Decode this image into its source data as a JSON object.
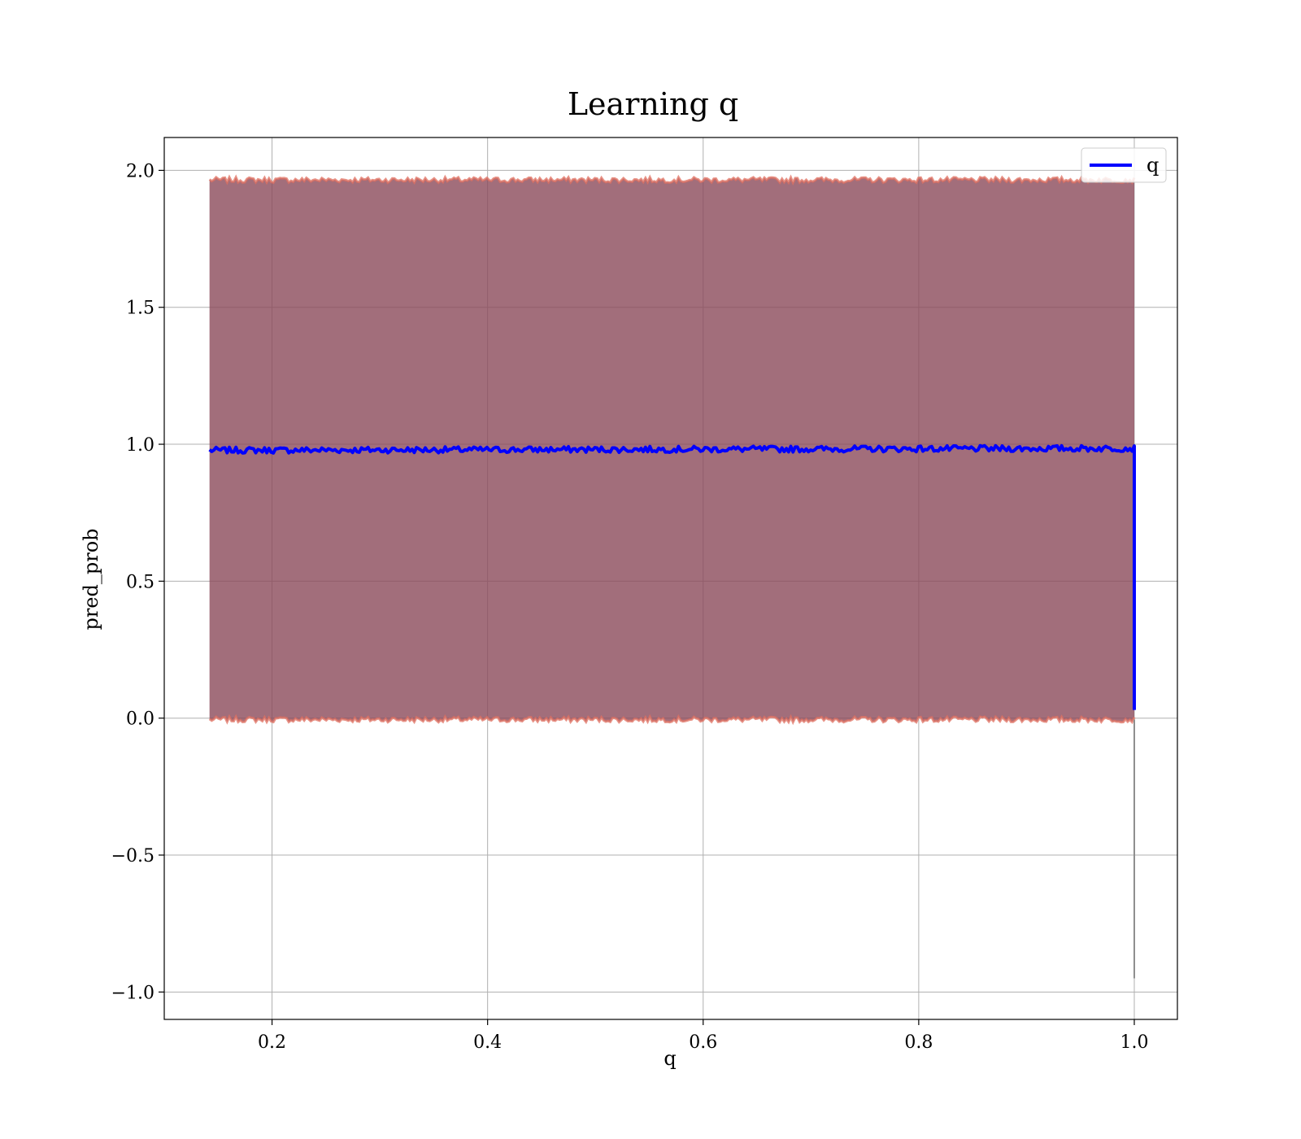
{
  "chart_data": {
    "type": "line",
    "title": "Learning q",
    "xlabel": "q",
    "ylabel": "pred_prob",
    "xlim": [
      0.1,
      1.04
    ],
    "ylim": [
      -1.1,
      2.12
    ],
    "x_ticks": [
      0.2,
      0.4,
      0.6,
      0.8,
      1.0
    ],
    "x_tick_labels": [
      "0.2",
      "0.4",
      "0.6",
      "0.8",
      "1.0"
    ],
    "y_ticks": [
      -1.0,
      -0.5,
      0.0,
      0.5,
      1.0,
      1.5,
      2.0
    ],
    "y_tick_labels": [
      "−1.0",
      "−0.5",
      "0.0",
      "0.5",
      "1.0",
      "1.5",
      "2.0"
    ],
    "grid": true,
    "legend_position": "top-right",
    "series": [
      {
        "name": "q",
        "color": "#0000ff",
        "x_start": 0.142,
        "x_end": 1.0,
        "mean_value": 0.985,
        "end_drop_value": 0.03
      }
    ],
    "band": {
      "color": "#8b4a5a",
      "edge_color": "#e07060",
      "upper": 1.965,
      "lower": -0.005,
      "tail_min": -0.95
    }
  }
}
